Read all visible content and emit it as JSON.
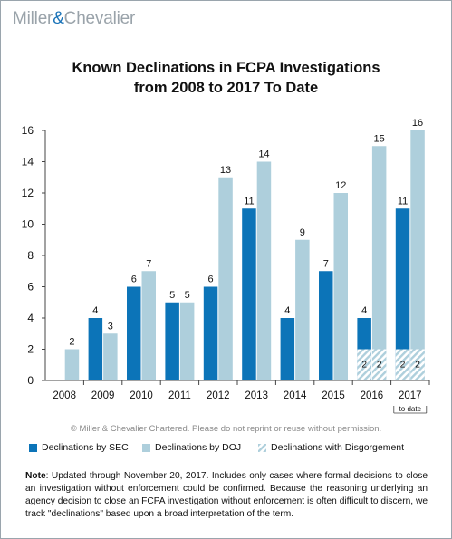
{
  "brand": {
    "part1": "Miller",
    "amp": "&",
    "part2": "Chevalier"
  },
  "title_line1": "Known Declinations in FCPA Investigations",
  "title_line2": "from 2008 to 2017 To Date",
  "copyright": "© Miller & Chevalier Chartered. Please do not reprint or reuse without permission.",
  "note_label": "Note",
  "note_text": ": Updated through November 20, 2017. Includes only cases where formal decisions to close an investigation without enforcement could be confirmed. Because the reasoning underlying an agency decision to close an FCPA investigation without enforcement is often difficult to discern, we track \"declinations\" based upon a broad interpretation of the term.",
  "colors": {
    "sec": "#0c74b8",
    "doj": "#aecfdc",
    "disgorgement_stripe": "#aecfdc",
    "axis": "#444444"
  },
  "chart_data": {
    "type": "bar",
    "categories": [
      "2008",
      "2009",
      "2010",
      "2011",
      "2012",
      "2013",
      "2014",
      "2015",
      "2016",
      "2017"
    ],
    "series": [
      {
        "name": "Declinations by SEC",
        "values": [
          0,
          4,
          6,
          5,
          6,
          11,
          4,
          7,
          4,
          11
        ],
        "color": "#0c74b8"
      },
      {
        "name": "Declinations by DOJ",
        "values": [
          2,
          3,
          7,
          5,
          13,
          14,
          9,
          12,
          15,
          16
        ],
        "color": "#aecfdc"
      },
      {
        "name": "Declinations with Disgorgement",
        "values": [
          0,
          0,
          0,
          0,
          0,
          0,
          0,
          0,
          2,
          2
        ],
        "pattern": "hatched"
      }
    ],
    "bar_labels": {
      "sec": [
        "",
        "4",
        "6",
        "5",
        "6",
        "11",
        "4",
        "7",
        "4",
        "11"
      ],
      "doj": [
        "2",
        "3",
        "7",
        "5",
        "13",
        "14",
        "9",
        "12",
        "15",
        "16"
      ],
      "disgorgement": [
        "",
        "",
        "",
        "",
        "",
        "",
        "",
        "",
        "2",
        "2"
      ]
    },
    "yticks": [
      0,
      2,
      4,
      6,
      8,
      10,
      12,
      14,
      16
    ],
    "ylim": [
      0,
      16
    ],
    "annotation": "to date",
    "legend_position": "bottom",
    "grid": false
  }
}
